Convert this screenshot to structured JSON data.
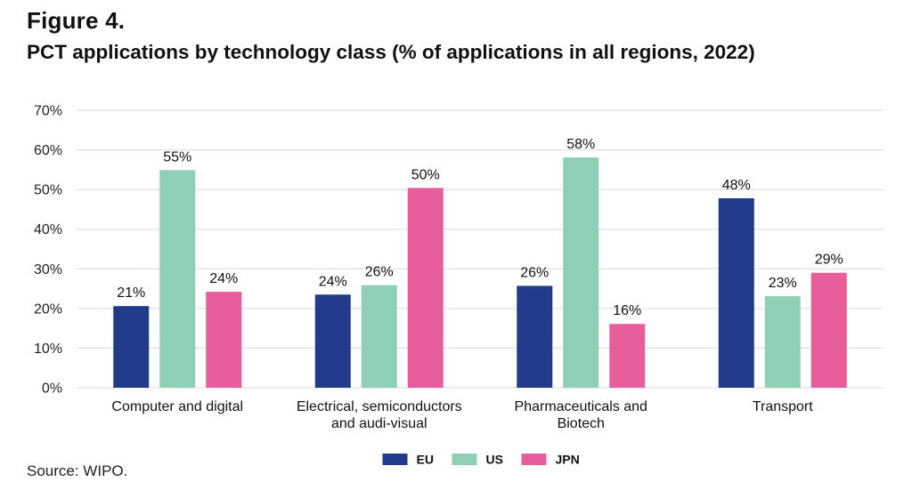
{
  "figure_label": "Figure 4.",
  "title": "PCT applications by technology class (% of applications in all regions, 2022)",
  "source": "Source: WIPO.",
  "colors": {
    "EU": "#213a8a",
    "US": "#8ecfb6",
    "JPN": "#e85d9b",
    "grid": "#d9d9d9"
  },
  "chart_data": {
    "type": "bar",
    "title": "PCT applications by technology class (% of applications in all regions, 2022)",
    "xlabel": "",
    "ylabel": "",
    "ylim": [
      0,
      70
    ],
    "yticks": [
      "0%",
      "10%",
      "20%",
      "30%",
      "40%",
      "50%",
      "60%",
      "70%"
    ],
    "ytick_values": [
      0,
      10,
      20,
      30,
      40,
      50,
      60,
      70
    ],
    "grid": true,
    "legend_position": "bottom",
    "categories": [
      [
        "Computer and digital"
      ],
      [
        "Electrical, semiconductors",
        "and audi-visual"
      ],
      [
        "Pharmaceuticals and",
        "Biotech"
      ],
      [
        "Transport"
      ]
    ],
    "series": [
      {
        "name": "EU",
        "color": "#213a8a",
        "values": [
          20.6,
          23.5,
          25.7,
          47.8
        ],
        "labels": [
          "21%",
          "24%",
          "26%",
          "48%"
        ]
      },
      {
        "name": "US",
        "color": "#8ecfb6",
        "values": [
          54.9,
          25.9,
          58.1,
          23.1
        ],
        "labels": [
          "55%",
          "26%",
          "58%",
          "23%"
        ]
      },
      {
        "name": "JPN",
        "color": "#e85d9b",
        "values": [
          24.2,
          50.4,
          16.1,
          29.0
        ],
        "labels": [
          "24%",
          "50%",
          "16%",
          "29%"
        ]
      }
    ]
  }
}
